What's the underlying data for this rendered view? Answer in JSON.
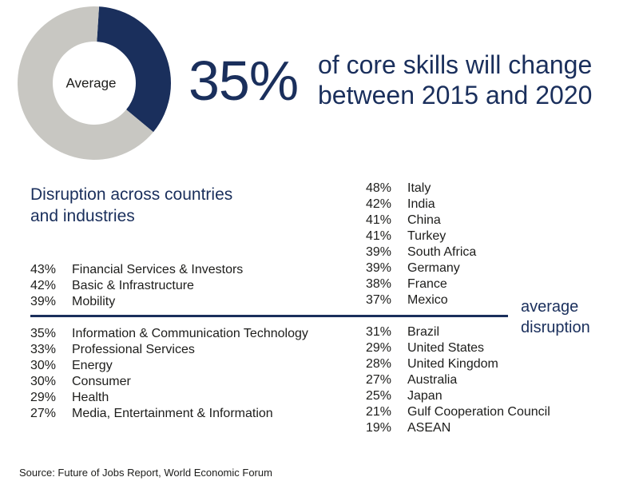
{
  "chart_data": {
    "type": "pie",
    "title": "",
    "center_label": "Average",
    "highlight_value": 35,
    "slices": [
      {
        "value": 35,
        "color": "#1a2f5c"
      },
      {
        "value": 65,
        "color": "#c8c7c2"
      }
    ]
  },
  "headline": {
    "percent": "35%",
    "line1": "of core skills will change",
    "line2": "between 2015 and 2020"
  },
  "subtitle": {
    "line1": "Disruption across countries",
    "line2": "and industries"
  },
  "average_label": {
    "line1": "average",
    "line2": "disruption"
  },
  "industries": [
    {
      "value": "43%",
      "name": "Financial Services & Investors"
    },
    {
      "value": "42%",
      "name": "Basic & Infrastructure"
    },
    {
      "value": "39%",
      "name": "Mobility"
    },
    {
      "value": "35%",
      "name": "Information & Communication Technology"
    },
    {
      "value": "33%",
      "name": "Professional Services"
    },
    {
      "value": "30%",
      "name": "Energy"
    },
    {
      "value": "30%",
      "name": "Consumer"
    },
    {
      "value": "29%",
      "name": "Health"
    },
    {
      "value": "27%",
      "name": "Media, Entertainment & Information"
    }
  ],
  "countries": [
    {
      "value": "48%",
      "name": "Italy"
    },
    {
      "value": "42%",
      "name": "India"
    },
    {
      "value": "41%",
      "name": "China"
    },
    {
      "value": "41%",
      "name": "Turkey"
    },
    {
      "value": "39%",
      "name": "South Africa"
    },
    {
      "value": "39%",
      "name": "Germany"
    },
    {
      "value": "38%",
      "name": "France"
    },
    {
      "value": "37%",
      "name": "Mexico"
    },
    {
      "value": "31%",
      "name": "Brazil"
    },
    {
      "value": "29%",
      "name": "United States"
    },
    {
      "value": "28%",
      "name": "United Kingdom"
    },
    {
      "value": "27%",
      "name": "Australia"
    },
    {
      "value": "25%",
      "name": "Japan"
    },
    {
      "value": "21%",
      "name": "Gulf Cooperation Council"
    },
    {
      "value": "19%",
      "name": "ASEAN"
    }
  ],
  "source": "Source: Future of Jobs Report, World Economic Forum"
}
